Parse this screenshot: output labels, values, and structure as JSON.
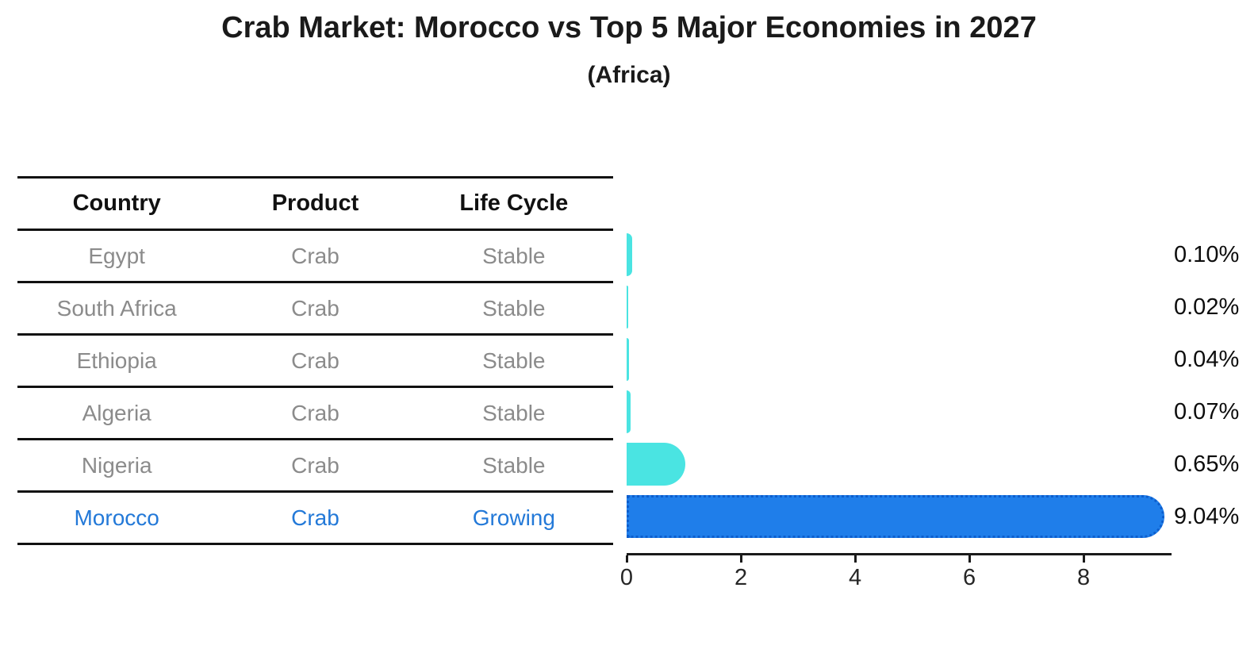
{
  "title": "Crab Market: Morocco vs Top 5 Major Economies in 2027",
  "subtitle": "(Africa)",
  "table": {
    "headers": [
      "Country",
      "Product",
      "Life Cycle"
    ],
    "rows": [
      {
        "country": "Egypt",
        "product": "Crab",
        "life_cycle": "Stable",
        "highlight": false
      },
      {
        "country": "South Africa",
        "product": "Crab",
        "life_cycle": "Stable",
        "highlight": false
      },
      {
        "country": "Ethiopia",
        "product": "Crab",
        "life_cycle": "Stable",
        "highlight": false
      },
      {
        "country": "Algeria",
        "product": "Crab",
        "life_cycle": "Stable",
        "highlight": false
      },
      {
        "country": "Nigeria",
        "product": "Crab",
        "life_cycle": "Stable",
        "highlight": false
      },
      {
        "country": "Morocco",
        "product": "Crab",
        "life_cycle": "Growing",
        "highlight": true
      }
    ]
  },
  "chart_data": {
    "type": "bar",
    "orientation": "horizontal",
    "title": "Crab Market: Morocco vs Top 5 Major Economies in 2027",
    "subtitle": "(Africa)",
    "categories": [
      "Egypt",
      "South Africa",
      "Ethiopia",
      "Algeria",
      "Nigeria",
      "Morocco"
    ],
    "values": [
      0.1,
      0.02,
      0.04,
      0.07,
      0.65,
      9.04
    ],
    "value_labels": [
      "0.10%",
      "0.02%",
      "0.04%",
      "0.07%",
      "0.65%",
      "9.04%"
    ],
    "unit": "%",
    "xticks": [
      0,
      2,
      4,
      6,
      8
    ],
    "xlim": [
      0,
      9.54
    ],
    "highlight_index": 5,
    "grid": false,
    "legend": false
  },
  "theme": {
    "bar-default": "#4ae4e2",
    "bar-highlight": "#1f7eea",
    "bar-highlight-border": "#0d5ecd",
    "highlight-text": "#2379d8",
    "muted-text": "#8b8b8b",
    "line": "#111111"
  }
}
